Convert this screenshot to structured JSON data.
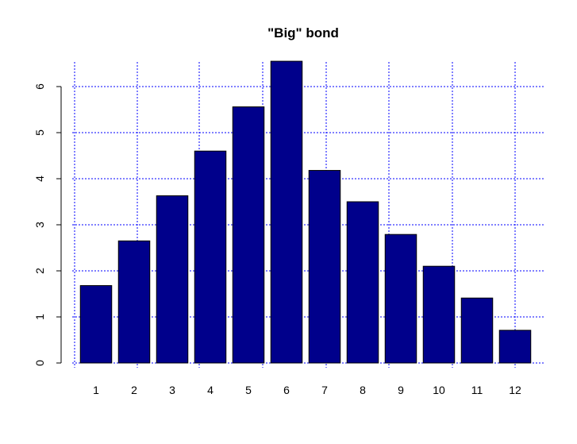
{
  "chart_data": {
    "type": "bar",
    "title": "\"Big\" bond",
    "xlabel": "",
    "ylabel": "",
    "categories": [
      "1",
      "2",
      "3",
      "4",
      "5",
      "6",
      "7",
      "8",
      "9",
      "10",
      "11",
      "12"
    ],
    "values": [
      1.68,
      2.65,
      3.63,
      4.6,
      5.56,
      6.55,
      4.18,
      3.5,
      2.79,
      2.1,
      1.41,
      0.71
    ],
    "ylim": [
      0,
      6.55
    ],
    "yticks": [
      "0",
      "1",
      "2",
      "3",
      "4",
      "5",
      "6"
    ],
    "grid": true,
    "legend": "none",
    "colors": {
      "bar_fill": "#00008B",
      "bar_stroke": "#000000",
      "grid": "#0000FF",
      "axis": "#000000"
    }
  }
}
